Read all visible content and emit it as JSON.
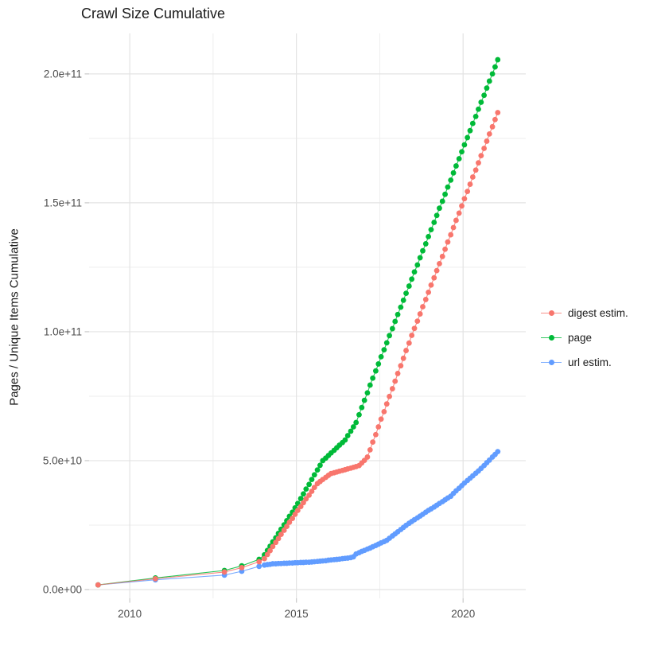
{
  "title": "Crawl Size Cumulative",
  "chart_data": {
    "type": "scatter",
    "title": "Crawl Size Cumulative",
    "xlabel": "",
    "ylabel": "Pages / Unique Items Cumulative",
    "legend_position": "right",
    "grid": "major+minor",
    "y_unit": "1e10 (values below are in units of 1e10 pages/items)",
    "x_range": [
      2008.78,
      2021.88
    ],
    "y_range": [
      -0.34,
      21.57
    ],
    "x_ticks": [
      {
        "label": "2010",
        "value": 2010
      },
      {
        "label": "2015",
        "value": 2015
      },
      {
        "label": "2020",
        "value": 2020
      }
    ],
    "y_ticks": [
      {
        "label": "0.0e+00",
        "value": 0
      },
      {
        "label": "5.0e+10",
        "value": 5
      },
      {
        "label": "1.0e+11",
        "value": 10
      },
      {
        "label": "1.5e+11",
        "value": 15
      },
      {
        "label": "2.0e+11",
        "value": 20
      }
    ],
    "x_minor": [
      2012.5,
      2017.5
    ],
    "y_minor": [
      2.5,
      7.5,
      12.5,
      17.5
    ],
    "series": [
      {
        "name": "digest estim.",
        "color": "#F8766D",
        "points": [
          [
            2009.05,
            0.18
          ],
          [
            2010.77,
            0.42
          ],
          [
            2012.84,
            0.68
          ],
          [
            2013.36,
            0.85
          ],
          [
            2013.88,
            1.08
          ],
          [
            2014.04,
            1.2
          ],
          [
            2014.13,
            1.36
          ],
          [
            2014.21,
            1.51
          ],
          [
            2014.29,
            1.67
          ],
          [
            2014.38,
            1.83
          ],
          [
            2014.46,
            1.98
          ],
          [
            2014.54,
            2.14
          ],
          [
            2014.63,
            2.3
          ],
          [
            2014.71,
            2.45
          ],
          [
            2014.79,
            2.61
          ],
          [
            2014.88,
            2.76
          ],
          [
            2014.96,
            2.92
          ],
          [
            2015.04,
            3.07
          ],
          [
            2015.13,
            3.22
          ],
          [
            2015.21,
            3.37
          ],
          [
            2015.29,
            3.52
          ],
          [
            2015.38,
            3.66
          ],
          [
            2015.46,
            3.81
          ],
          [
            2015.54,
            3.96
          ],
          [
            2015.63,
            4.11
          ],
          [
            2015.71,
            4.19
          ],
          [
            2015.79,
            4.27
          ],
          [
            2015.88,
            4.35
          ],
          [
            2015.96,
            4.43
          ],
          [
            2016.04,
            4.5
          ],
          [
            2016.13,
            4.53
          ],
          [
            2016.21,
            4.56
          ],
          [
            2016.29,
            4.59
          ],
          [
            2016.38,
            4.62
          ],
          [
            2016.46,
            4.65
          ],
          [
            2016.54,
            4.68
          ],
          [
            2016.63,
            4.71
          ],
          [
            2016.71,
            4.74
          ],
          [
            2016.79,
            4.77
          ],
          [
            2016.88,
            4.81
          ],
          [
            2016.96,
            4.91
          ],
          [
            2017.04,
            5.01
          ],
          [
            2017.13,
            5.14
          ],
          [
            2017.21,
            5.42
          ],
          [
            2017.29,
            5.72
          ],
          [
            2017.38,
            6.01
          ],
          [
            2017.46,
            6.31
          ],
          [
            2017.54,
            6.61
          ],
          [
            2017.63,
            6.9
          ],
          [
            2017.71,
            7.2
          ],
          [
            2017.79,
            7.49
          ],
          [
            2017.88,
            7.79
          ],
          [
            2017.96,
            8.08
          ],
          [
            2018.04,
            8.38
          ],
          [
            2018.13,
            8.68
          ],
          [
            2018.21,
            8.97
          ],
          [
            2018.29,
            9.27
          ],
          [
            2018.38,
            9.56
          ],
          [
            2018.46,
            9.86
          ],
          [
            2018.54,
            10.13
          ],
          [
            2018.63,
            10.41
          ],
          [
            2018.71,
            10.69
          ],
          [
            2018.79,
            10.97
          ],
          [
            2018.88,
            11.25
          ],
          [
            2018.96,
            11.53
          ],
          [
            2019.04,
            11.81
          ],
          [
            2019.13,
            12.09
          ],
          [
            2019.21,
            12.37
          ],
          [
            2019.29,
            12.64
          ],
          [
            2019.38,
            12.92
          ],
          [
            2019.46,
            13.2
          ],
          [
            2019.54,
            13.48
          ],
          [
            2019.63,
            13.76
          ],
          [
            2019.71,
            14.04
          ],
          [
            2019.79,
            14.32
          ],
          [
            2019.88,
            14.6
          ],
          [
            2019.96,
            14.88
          ],
          [
            2020.04,
            15.16
          ],
          [
            2020.13,
            15.44
          ],
          [
            2020.21,
            15.72
          ],
          [
            2020.29,
            16.0
          ],
          [
            2020.38,
            16.27
          ],
          [
            2020.46,
            16.55
          ],
          [
            2020.54,
            16.83
          ],
          [
            2020.63,
            17.11
          ],
          [
            2020.71,
            17.39
          ],
          [
            2020.79,
            17.67
          ],
          [
            2020.88,
            17.95
          ],
          [
            2020.96,
            18.23
          ],
          [
            2021.04,
            18.5
          ]
        ]
      },
      {
        "name": "page",
        "color": "#00BA38",
        "points": [
          [
            2009.05,
            0.18
          ],
          [
            2010.77,
            0.45
          ],
          [
            2012.84,
            0.74
          ],
          [
            2013.36,
            0.92
          ],
          [
            2013.88,
            1.17
          ],
          [
            2014.04,
            1.35
          ],
          [
            2014.13,
            1.52
          ],
          [
            2014.21,
            1.68
          ],
          [
            2014.29,
            1.85
          ],
          [
            2014.38,
            2.01
          ],
          [
            2014.46,
            2.18
          ],
          [
            2014.54,
            2.34
          ],
          [
            2014.63,
            2.51
          ],
          [
            2014.71,
            2.67
          ],
          [
            2014.79,
            2.84
          ],
          [
            2014.88,
            3.0
          ],
          [
            2014.96,
            3.17
          ],
          [
            2015.04,
            3.34
          ],
          [
            2015.13,
            3.53
          ],
          [
            2015.21,
            3.71
          ],
          [
            2015.29,
            3.9
          ],
          [
            2015.38,
            4.08
          ],
          [
            2015.46,
            4.27
          ],
          [
            2015.54,
            4.45
          ],
          [
            2015.63,
            4.64
          ],
          [
            2015.71,
            4.82
          ],
          [
            2015.79,
            5.0
          ],
          [
            2015.88,
            5.1
          ],
          [
            2015.96,
            5.2
          ],
          [
            2016.04,
            5.3
          ],
          [
            2016.13,
            5.4
          ],
          [
            2016.21,
            5.5
          ],
          [
            2016.29,
            5.6
          ],
          [
            2016.38,
            5.7
          ],
          [
            2016.46,
            5.8
          ],
          [
            2016.54,
            5.97
          ],
          [
            2016.63,
            6.14
          ],
          [
            2016.71,
            6.31
          ],
          [
            2016.79,
            6.48
          ],
          [
            2016.88,
            6.78
          ],
          [
            2016.96,
            7.06
          ],
          [
            2017.04,
            7.34
          ],
          [
            2017.13,
            7.63
          ],
          [
            2017.21,
            7.93
          ],
          [
            2017.29,
            8.2
          ],
          [
            2017.38,
            8.48
          ],
          [
            2017.46,
            8.75
          ],
          [
            2017.54,
            9.03
          ],
          [
            2017.63,
            9.3
          ],
          [
            2017.71,
            9.57
          ],
          [
            2017.79,
            9.85
          ],
          [
            2017.88,
            10.12
          ],
          [
            2017.96,
            10.4
          ],
          [
            2018.04,
            10.67
          ],
          [
            2018.13,
            10.95
          ],
          [
            2018.21,
            11.22
          ],
          [
            2018.29,
            11.49
          ],
          [
            2018.38,
            11.77
          ],
          [
            2018.46,
            12.04
          ],
          [
            2018.54,
            12.32
          ],
          [
            2018.63,
            12.59
          ],
          [
            2018.71,
            12.87
          ],
          [
            2018.79,
            13.14
          ],
          [
            2018.88,
            13.41
          ],
          [
            2018.96,
            13.69
          ],
          [
            2019.04,
            13.96
          ],
          [
            2019.13,
            14.24
          ],
          [
            2019.21,
            14.51
          ],
          [
            2019.29,
            14.79
          ],
          [
            2019.38,
            15.06
          ],
          [
            2019.46,
            15.33
          ],
          [
            2019.54,
            15.61
          ],
          [
            2019.63,
            15.88
          ],
          [
            2019.71,
            16.16
          ],
          [
            2019.79,
            16.43
          ],
          [
            2019.88,
            16.71
          ],
          [
            2019.96,
            16.98
          ],
          [
            2020.04,
            17.25
          ],
          [
            2020.13,
            17.53
          ],
          [
            2020.21,
            17.8
          ],
          [
            2020.29,
            18.08
          ],
          [
            2020.38,
            18.35
          ],
          [
            2020.46,
            18.63
          ],
          [
            2020.54,
            18.9
          ],
          [
            2020.63,
            19.17
          ],
          [
            2020.71,
            19.45
          ],
          [
            2020.79,
            19.72
          ],
          [
            2020.88,
            20.0
          ],
          [
            2020.96,
            20.27
          ],
          [
            2021.04,
            20.55
          ]
        ]
      },
      {
        "name": "url estim.",
        "color": "#619CFF",
        "points": [
          [
            2009.05,
            0.18
          ],
          [
            2010.77,
            0.38
          ],
          [
            2012.84,
            0.56
          ],
          [
            2013.36,
            0.71
          ],
          [
            2013.88,
            0.9
          ],
          [
            2014.04,
            0.95
          ],
          [
            2014.13,
            0.97
          ],
          [
            2014.21,
            0.98
          ],
          [
            2014.29,
            1.0
          ],
          [
            2014.38,
            1.0
          ],
          [
            2014.46,
            1.01
          ],
          [
            2014.54,
            1.01
          ],
          [
            2014.63,
            1.02
          ],
          [
            2014.71,
            1.02
          ],
          [
            2014.79,
            1.03
          ],
          [
            2014.88,
            1.03
          ],
          [
            2014.96,
            1.04
          ],
          [
            2015.04,
            1.04
          ],
          [
            2015.13,
            1.05
          ],
          [
            2015.21,
            1.05
          ],
          [
            2015.29,
            1.06
          ],
          [
            2015.38,
            1.06
          ],
          [
            2015.46,
            1.07
          ],
          [
            2015.54,
            1.08
          ],
          [
            2015.63,
            1.09
          ],
          [
            2015.71,
            1.1
          ],
          [
            2015.79,
            1.11
          ],
          [
            2015.88,
            1.12
          ],
          [
            2015.96,
            1.14
          ],
          [
            2016.04,
            1.15
          ],
          [
            2016.13,
            1.16
          ],
          [
            2016.21,
            1.17
          ],
          [
            2016.29,
            1.18
          ],
          [
            2016.38,
            1.2
          ],
          [
            2016.46,
            1.21
          ],
          [
            2016.54,
            1.22
          ],
          [
            2016.63,
            1.24
          ],
          [
            2016.71,
            1.27
          ],
          [
            2016.79,
            1.38
          ],
          [
            2016.88,
            1.43
          ],
          [
            2016.96,
            1.48
          ],
          [
            2017.04,
            1.52
          ],
          [
            2017.13,
            1.57
          ],
          [
            2017.21,
            1.61
          ],
          [
            2017.29,
            1.66
          ],
          [
            2017.38,
            1.71
          ],
          [
            2017.46,
            1.76
          ],
          [
            2017.54,
            1.81
          ],
          [
            2017.63,
            1.86
          ],
          [
            2017.71,
            1.91
          ],
          [
            2017.79,
            1.99
          ],
          [
            2017.88,
            2.08
          ],
          [
            2017.96,
            2.16
          ],
          [
            2018.04,
            2.24
          ],
          [
            2018.13,
            2.33
          ],
          [
            2018.21,
            2.41
          ],
          [
            2018.29,
            2.49
          ],
          [
            2018.38,
            2.57
          ],
          [
            2018.46,
            2.64
          ],
          [
            2018.54,
            2.71
          ],
          [
            2018.63,
            2.78
          ],
          [
            2018.71,
            2.85
          ],
          [
            2018.79,
            2.92
          ],
          [
            2018.88,
            3.0
          ],
          [
            2018.96,
            3.07
          ],
          [
            2019.04,
            3.13
          ],
          [
            2019.13,
            3.2
          ],
          [
            2019.21,
            3.27
          ],
          [
            2019.29,
            3.34
          ],
          [
            2019.38,
            3.41
          ],
          [
            2019.46,
            3.48
          ],
          [
            2019.54,
            3.55
          ],
          [
            2019.63,
            3.62
          ],
          [
            2019.71,
            3.73
          ],
          [
            2019.79,
            3.83
          ],
          [
            2019.88,
            3.93
          ],
          [
            2019.96,
            4.03
          ],
          [
            2020.04,
            4.13
          ],
          [
            2020.13,
            4.23
          ],
          [
            2020.21,
            4.32
          ],
          [
            2020.29,
            4.41
          ],
          [
            2020.38,
            4.51
          ],
          [
            2020.46,
            4.6
          ],
          [
            2020.54,
            4.7
          ],
          [
            2020.63,
            4.81
          ],
          [
            2020.71,
            4.92
          ],
          [
            2020.79,
            5.02
          ],
          [
            2020.88,
            5.14
          ],
          [
            2020.96,
            5.24
          ],
          [
            2021.04,
            5.35
          ]
        ]
      }
    ]
  },
  "style": {
    "grid_major_color": "#e3e3e3",
    "grid_minor_color": "#eeeeee",
    "tick_color": "#c9c9c9",
    "tick_label_color": "#4d4d4d",
    "point_radius": 3.4
  }
}
